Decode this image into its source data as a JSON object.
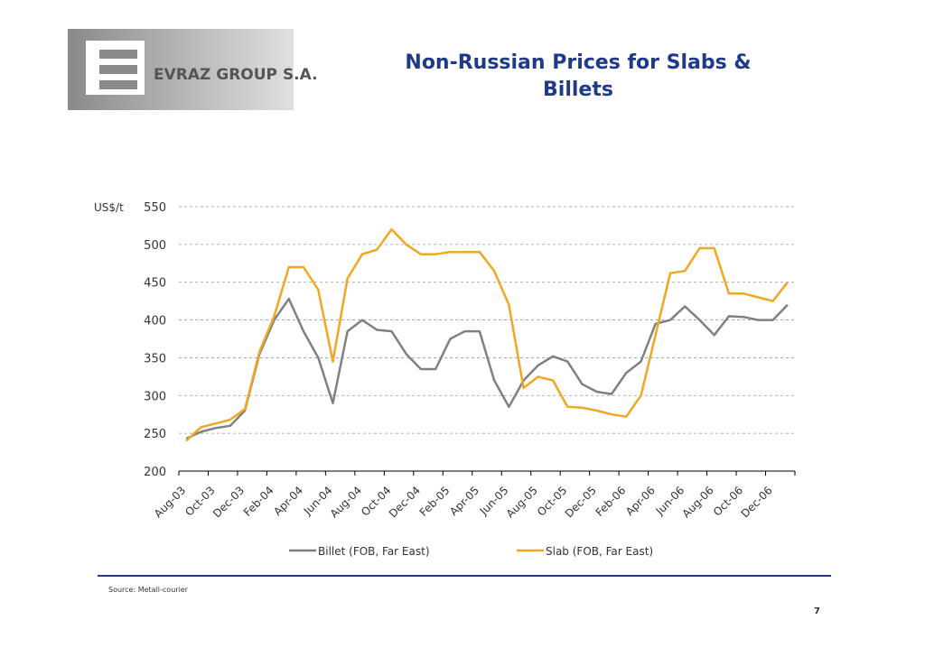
{
  "logo_text": "EVRAZ GROUP S.A.",
  "page_number": "7",
  "source": "Source: Metall-courier",
  "chart_data": {
    "type": "line",
    "title": "Non-Russian Prices for Slabs &",
    "title_line2": "Billets",
    "y_label": "US$/t",
    "categories": [
      "Aug-03",
      null,
      "Oct-03",
      null,
      "Dec-03",
      null,
      "Feb-04",
      null,
      "Apr-04",
      null,
      "Jun-04",
      null,
      "Aug-04",
      null,
      "Oct-04",
      null,
      "Dec-04",
      null,
      "Feb-05",
      null,
      "Apr-05",
      null,
      "Jun-05",
      null,
      "Aug-05",
      null,
      "Oct-05",
      null,
      "Dec-05",
      null,
      "Feb-06",
      null,
      "Apr-06",
      null,
      "Jun-06",
      null,
      "Aug-06",
      null,
      "Oct-06",
      null,
      "Dec-06",
      null
    ],
    "series": [
      {
        "name": "Billet (FOB, Far East)",
        "color": "#808080",
        "values": [
          243,
          252,
          257,
          260,
          280,
          355,
          400,
          428,
          385,
          350,
          290,
          385,
          400,
          387,
          385,
          355,
          335,
          335,
          375,
          385,
          385,
          320,
          285,
          320,
          340,
          352,
          345,
          315,
          305,
          302,
          330,
          345,
          395,
          400,
          418,
          400,
          380,
          405,
          404,
          400,
          400,
          420
        ]
      },
      {
        "name": "Slab (FOB, Far East)",
        "color": "#f0a722",
        "values": [
          240,
          258,
          263,
          268,
          282,
          358,
          405,
          470,
          470,
          440,
          345,
          455,
          487,
          493,
          520,
          500,
          487,
          487,
          490,
          490,
          490,
          465,
          420,
          310,
          325,
          320,
          285,
          284,
          280,
          275,
          272,
          300,
          380,
          462,
          465,
          495,
          495,
          435,
          435,
          430,
          425,
          450
        ]
      }
    ],
    "ylim": [
      200,
      550
    ],
    "yticks": [
      200,
      250,
      300,
      350,
      400,
      450,
      500,
      550
    ],
    "grid": true,
    "legend": "bottom"
  }
}
